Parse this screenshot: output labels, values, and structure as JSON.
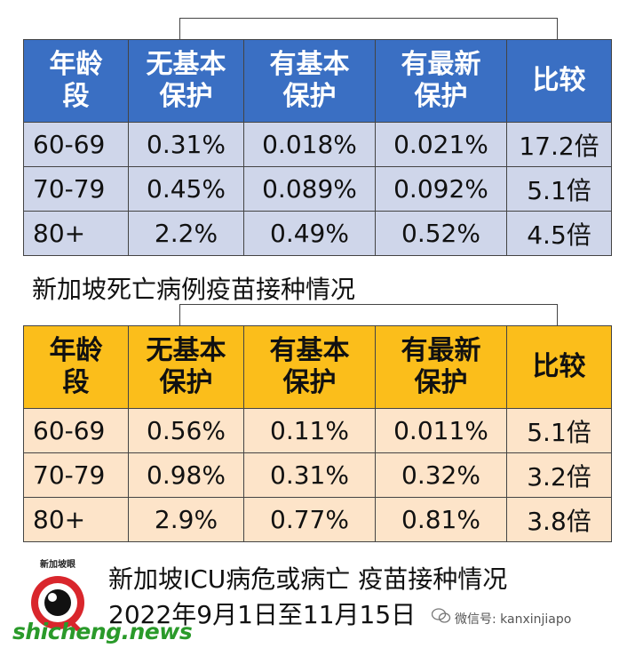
{
  "table1": {
    "headers": [
      "年龄\n段",
      "无基本\n保护",
      "有基本\n保护",
      "有最新\n保护",
      "比较"
    ],
    "rows": [
      [
        "60-69",
        "0.31%",
        "0.018%",
        "0.021%",
        "17.2倍"
      ],
      [
        "70-79",
        "0.45%",
        "0.089%",
        "0.092%",
        "5.1倍"
      ],
      [
        "80+",
        "2.2%",
        "0.49%",
        "0.52%",
        "4.5倍"
      ]
    ],
    "header_color": "#3a6fc3",
    "row_color": "#cfd6ea"
  },
  "caption1": "新加坡死亡病例疫苗接种情况",
  "table2": {
    "headers": [
      "年龄\n段",
      "无基本\n保护",
      "有基本\n保护",
      "有最新\n保护",
      "比较"
    ],
    "rows": [
      [
        "60-69",
        "0.56%",
        "0.11%",
        "0.011%",
        "5.1倍"
      ],
      [
        "70-79",
        "0.98%",
        "0.31%",
        "0.32%",
        "3.2倍"
      ],
      [
        "80+",
        "2.9%",
        "0.77%",
        "0.81%",
        "3.8倍"
      ]
    ],
    "header_color": "#fbbe1b",
    "row_color": "#fde4c9"
  },
  "caption2_line1": "新加坡ICU病危或病亡 疫苗接种情况",
  "caption2_line2": "2022年9月1日至11月15日",
  "logo_text": "新加坡眼",
  "watermark": "shicheng.news",
  "wechat_text": "微信号: kanxinjiapo"
}
